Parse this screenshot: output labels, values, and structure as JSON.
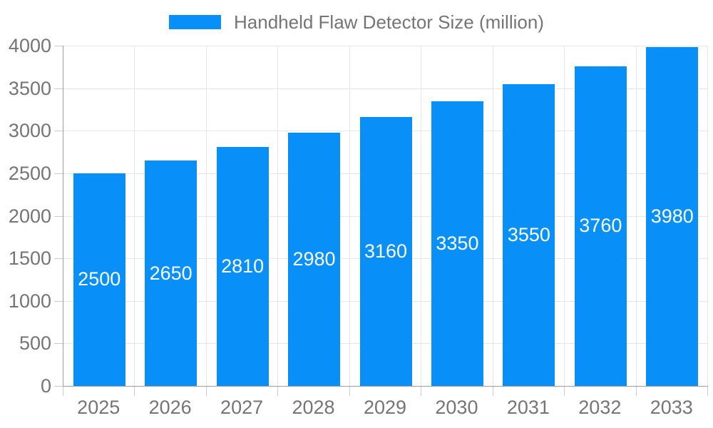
{
  "chart_data": {
    "type": "bar",
    "legend": "Handheld Flaw Detector Size (million)",
    "categories": [
      "2025",
      "2026",
      "2027",
      "2028",
      "2029",
      "2030",
      "2031",
      "2032",
      "2033"
    ],
    "series": [
      {
        "name": "Handheld Flaw Detector Size (million)",
        "values": [
          2500,
          2650,
          2810,
          2980,
          3160,
          3350,
          3550,
          3760,
          3980
        ]
      }
    ],
    "bar_labels": [
      "2500",
      "2650",
      "2810",
      "2980",
      "3160",
      "3350",
      "3550",
      "3760",
      "3980"
    ],
    "ylim": [
      0,
      4000
    ],
    "yticks": [
      0,
      500,
      1000,
      1500,
      2000,
      2500,
      3000,
      3500,
      4000
    ],
    "grid": true,
    "legend_position": "top-center",
    "colors": {
      "bar": "#0990f8",
      "bar_label_text": "#ffffff",
      "axis_line": "#9e9e9e",
      "tick": "#cccccc",
      "gridline": "#e6e6e6",
      "axis_text": "#757575",
      "legend_text": "#757575",
      "background": "#ffffff"
    }
  }
}
